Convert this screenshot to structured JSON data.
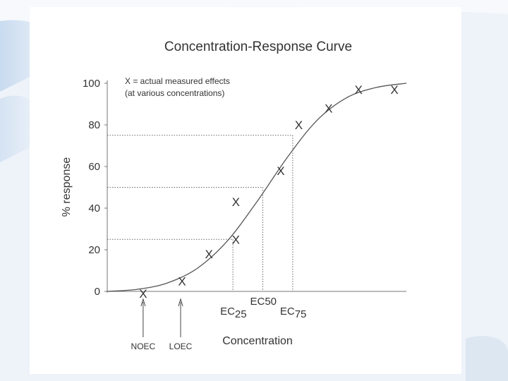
{
  "chart_data": {
    "type": "line",
    "title": "Concentration-Response Curve",
    "xlabel": "Concentration",
    "ylabel": "% response",
    "ylim": [
      0,
      100
    ],
    "y_ticks": [
      0,
      20,
      40,
      60,
      80,
      100
    ],
    "grid": false,
    "x_scale": "relative concentration, unlabeled",
    "curve": {
      "x": [
        0,
        10,
        20,
        30,
        40,
        50,
        60,
        70,
        80,
        90,
        100
      ],
      "y": [
        0,
        1,
        4,
        11,
        24,
        43,
        64,
        82,
        93,
        98,
        100
      ]
    },
    "measured_points": {
      "x": [
        12,
        25,
        34,
        43,
        43,
        58,
        64,
        74,
        84,
        96
      ],
      "y": [
        -1,
        5,
        18,
        25,
        43,
        58,
        80,
        88,
        97,
        97
      ]
    },
    "legend": {
      "line1": "X = actual measured effects",
      "line2": "(at various concentrations)",
      "marker": "X"
    },
    "reference_lines": [
      {
        "label": "EC",
        "subscript": "25",
        "x": 42,
        "y": 25
      },
      {
        "label": "EC",
        "subscript": "50",
        "x": 52,
        "y": 50
      },
      {
        "label": "EC",
        "subscript": "75",
        "x": 62,
        "y": 75
      }
    ],
    "arrows": [
      {
        "label": "NOEC",
        "x": 12
      },
      {
        "label": "LOEC",
        "x": 25
      }
    ]
  }
}
